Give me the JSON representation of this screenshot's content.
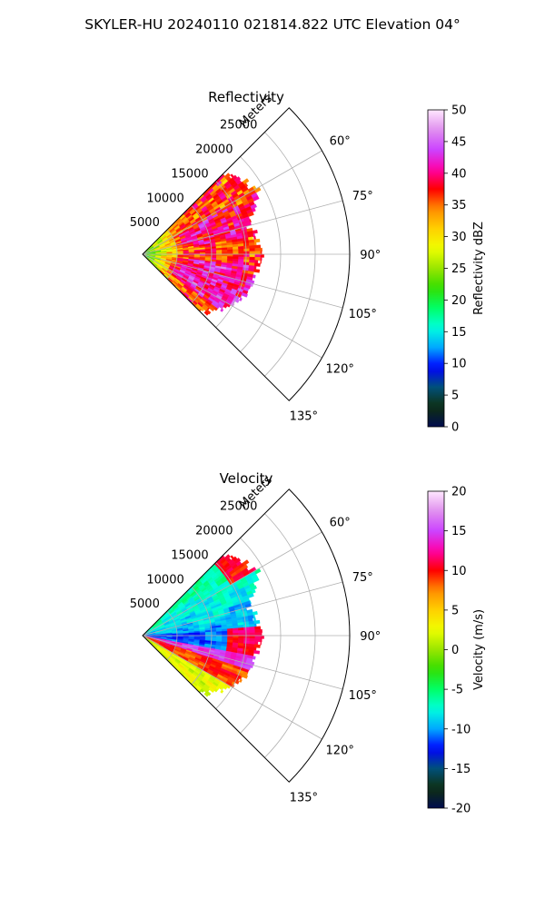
{
  "suptitle": "SKYLER-HU  20240110  021814.822 UTC Elevation 04°",
  "panels": [
    {
      "title": "Reflectivity",
      "radial_label": "Meters",
      "radial_ticks": [
        "5000",
        "10000",
        "15000",
        "20000",
        "25000"
      ],
      "angle_ticks": [
        "60°",
        "75°",
        "90°",
        "105°",
        "120°",
        "135°"
      ],
      "colorbar": {
        "label": "Reflectivity dBZ",
        "ticks": [
          "0",
          "5",
          "10",
          "15",
          "20",
          "25",
          "30",
          "35",
          "40",
          "45",
          "50"
        ]
      }
    },
    {
      "title": "Velocity",
      "radial_label": "Meters",
      "radial_ticks": [
        "5000",
        "10000",
        "15000",
        "20000",
        "25000"
      ],
      "angle_ticks": [
        "60°",
        "75°",
        "90°",
        "105°",
        "120°",
        "135°"
      ],
      "colorbar": {
        "label": "Velocity (m/s)",
        "ticks": [
          "-20",
          "-15",
          "-10",
          "-5",
          "0",
          "5",
          "10",
          "15",
          "20"
        ]
      }
    }
  ],
  "chart_data": [
    {
      "type": "heatmap",
      "subtype": "polar-sector (PPI)",
      "title": "Reflectivity",
      "variable": "Reflectivity dBZ",
      "theta_range_deg": [
        45,
        135
      ],
      "theta_ticks_deg": [
        45,
        60,
        75,
        90,
        105,
        120,
        135
      ],
      "r_range_m": [
        0,
        30000
      ],
      "r_ticks_m": [
        5000,
        10000,
        15000,
        20000,
        25000
      ],
      "echo_extent_m": {
        "45": 16500,
        "60": 19000,
        "75": 16000,
        "90": 17500,
        "105": 16500,
        "120": 15000,
        "135": 12000
      },
      "color_range": [
        0,
        50
      ],
      "colormap": [
        "#000c4e",
        "#0f2f0f",
        "#00507a",
        "#0000ff",
        "#00a8ff",
        "#00ffdd",
        "#00ff66",
        "#33dd00",
        "#99e600",
        "#f0ff00",
        "#ffd000",
        "#ff8c00",
        "#ff0000",
        "#ff00aa",
        "#cc44ff",
        "#e090ee",
        "#ffe8ff"
      ],
      "grid": true
    },
    {
      "type": "heatmap",
      "subtype": "polar-sector (PPI)",
      "title": "Velocity",
      "variable": "Velocity (m/s)",
      "theta_range_deg": [
        45,
        135
      ],
      "theta_ticks_deg": [
        45,
        60,
        75,
        90,
        105,
        120,
        135
      ],
      "r_range_m": [
        0,
        30000
      ],
      "r_ticks_m": [
        5000,
        10000,
        15000,
        20000,
        25000
      ],
      "echo_extent_m": {
        "45": 16500,
        "60": 19000,
        "75": 16000,
        "90": 17500,
        "105": 16500,
        "120": 15000,
        "135": 12000
      },
      "color_range": [
        -20,
        20
      ],
      "colormap": [
        "#000c4e",
        "#0f2f0f",
        "#00507a",
        "#0000ff",
        "#00a8ff",
        "#00ffdd",
        "#00ff66",
        "#33dd00",
        "#99e600",
        "#f0ff00",
        "#ffd000",
        "#ff8c00",
        "#ff0000",
        "#ff00aa",
        "#cc44ff",
        "#e090ee",
        "#ffe8ff"
      ],
      "grid": true
    }
  ]
}
